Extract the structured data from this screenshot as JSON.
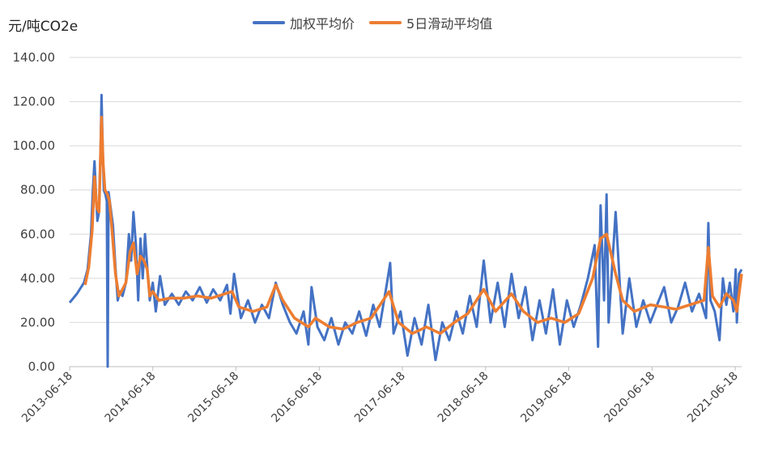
{
  "chart_data": {
    "type": "line",
    "unit_label": "元/吨CO2e",
    "ylim": [
      0,
      140
    ],
    "y_ticks": [
      "0.00",
      "20.00",
      "40.00",
      "60.00",
      "80.00",
      "100.00",
      "120.00",
      "140.00"
    ],
    "x_range": [
      "2013-06-18",
      "2021-07-16"
    ],
    "x_ticks": [
      "2013-06-18",
      "2014-06-18",
      "2015-06-18",
      "2016-06-18",
      "2017-06-18",
      "2018-06-18",
      "2019-06-18",
      "2020-06-18",
      "2021-06-18"
    ],
    "grid": true,
    "legend_position": "top",
    "series": [
      {
        "name": "加权平均价",
        "color": "#4472C4",
        "points": [
          [
            "2013-06-18",
            29
          ],
          [
            "2013-07-20",
            33
          ],
          [
            "2013-08-20",
            38
          ],
          [
            "2013-09-05",
            44
          ],
          [
            "2013-09-20",
            60
          ],
          [
            "2013-09-28",
            80
          ],
          [
            "2013-10-05",
            93
          ],
          [
            "2013-10-12",
            78
          ],
          [
            "2013-10-18",
            66
          ],
          [
            "2013-10-25",
            70
          ],
          [
            "2013-11-01",
            100
          ],
          [
            "2013-11-05",
            123
          ],
          [
            "2013-11-10",
            100
          ],
          [
            "2013-11-15",
            80
          ],
          [
            "2013-11-22",
            78
          ],
          [
            "2013-11-28",
            75
          ],
          [
            "2013-12-02",
            0
          ],
          [
            "2013-12-06",
            79
          ],
          [
            "2013-12-15",
            72
          ],
          [
            "2013-12-25",
            64
          ],
          [
            "2014-01-05",
            45
          ],
          [
            "2014-01-15",
            30
          ],
          [
            "2014-01-25",
            34
          ],
          [
            "2014-02-05",
            32
          ],
          [
            "2014-02-20",
            38
          ],
          [
            "2014-03-05",
            60
          ],
          [
            "2014-03-15",
            48
          ],
          [
            "2014-03-25",
            70
          ],
          [
            "2014-04-05",
            55
          ],
          [
            "2014-04-15",
            30
          ],
          [
            "2014-04-25",
            58
          ],
          [
            "2014-05-05",
            40
          ],
          [
            "2014-05-15",
            60
          ],
          [
            "2014-05-25",
            45
          ],
          [
            "2014-06-05",
            30
          ],
          [
            "2014-06-18",
            38
          ],
          [
            "2014-07-01",
            25
          ],
          [
            "2014-07-20",
            41
          ],
          [
            "2014-08-10",
            28
          ],
          [
            "2014-09-10",
            33
          ],
          [
            "2014-10-10",
            28
          ],
          [
            "2014-11-10",
            34
          ],
          [
            "2014-12-10",
            30
          ],
          [
            "2015-01-10",
            36
          ],
          [
            "2015-02-10",
            29
          ],
          [
            "2015-03-10",
            35
          ],
          [
            "2015-04-10",
            30
          ],
          [
            "2015-05-10",
            37
          ],
          [
            "2015-05-25",
            24
          ],
          [
            "2015-06-10",
            42
          ],
          [
            "2015-07-10",
            22
          ],
          [
            "2015-08-10",
            30
          ],
          [
            "2015-09-10",
            20
          ],
          [
            "2015-10-10",
            28
          ],
          [
            "2015-11-10",
            22
          ],
          [
            "2015-12-10",
            38
          ],
          [
            "2016-01-10",
            28
          ],
          [
            "2016-02-10",
            20
          ],
          [
            "2016-03-10",
            15
          ],
          [
            "2016-04-10",
            25
          ],
          [
            "2016-05-01",
            10
          ],
          [
            "2016-05-15",
            36
          ],
          [
            "2016-06-10",
            18
          ],
          [
            "2016-07-10",
            12
          ],
          [
            "2016-08-10",
            22
          ],
          [
            "2016-09-10",
            10
          ],
          [
            "2016-10-10",
            20
          ],
          [
            "2016-11-10",
            15
          ],
          [
            "2016-12-10",
            25
          ],
          [
            "2017-01-10",
            14
          ],
          [
            "2017-02-10",
            28
          ],
          [
            "2017-03-10",
            18
          ],
          [
            "2017-04-10",
            37
          ],
          [
            "2017-04-25",
            47
          ],
          [
            "2017-05-10",
            15
          ],
          [
            "2017-06-10",
            25
          ],
          [
            "2017-07-10",
            5
          ],
          [
            "2017-08-10",
            22
          ],
          [
            "2017-09-10",
            10
          ],
          [
            "2017-10-10",
            28
          ],
          [
            "2017-11-10",
            3
          ],
          [
            "2017-12-10",
            20
          ],
          [
            "2018-01-10",
            12
          ],
          [
            "2018-02-10",
            25
          ],
          [
            "2018-03-10",
            15
          ],
          [
            "2018-04-10",
            32
          ],
          [
            "2018-05-10",
            18
          ],
          [
            "2018-06-10",
            48
          ],
          [
            "2018-07-10",
            20
          ],
          [
            "2018-08-10",
            38
          ],
          [
            "2018-09-10",
            18
          ],
          [
            "2018-10-10",
            42
          ],
          [
            "2018-11-10",
            22
          ],
          [
            "2018-12-10",
            36
          ],
          [
            "2019-01-10",
            12
          ],
          [
            "2019-02-10",
            30
          ],
          [
            "2019-03-10",
            15
          ],
          [
            "2019-04-10",
            35
          ],
          [
            "2019-05-10",
            10
          ],
          [
            "2019-06-10",
            30
          ],
          [
            "2019-07-10",
            18
          ],
          [
            "2019-08-10",
            28
          ],
          [
            "2019-09-10",
            40
          ],
          [
            "2019-10-10",
            55
          ],
          [
            "2019-10-25",
            9
          ],
          [
            "2019-11-05",
            73
          ],
          [
            "2019-11-20",
            30
          ],
          [
            "2019-12-01",
            78
          ],
          [
            "2019-12-10",
            20
          ],
          [
            "2020-01-10",
            70
          ],
          [
            "2020-02-10",
            15
          ],
          [
            "2020-03-10",
            40
          ],
          [
            "2020-04-10",
            18
          ],
          [
            "2020-05-10",
            30
          ],
          [
            "2020-06-10",
            20
          ],
          [
            "2020-07-10",
            28
          ],
          [
            "2020-08-10",
            36
          ],
          [
            "2020-09-10",
            20
          ],
          [
            "2020-10-10",
            27
          ],
          [
            "2020-11-10",
            38
          ],
          [
            "2020-12-10",
            25
          ],
          [
            "2021-01-10",
            33
          ],
          [
            "2021-02-10",
            22
          ],
          [
            "2021-02-20",
            65
          ],
          [
            "2021-03-01",
            30
          ],
          [
            "2021-03-20",
            25
          ],
          [
            "2021-04-10",
            12
          ],
          [
            "2021-04-25",
            40
          ],
          [
            "2021-05-10",
            28
          ],
          [
            "2021-05-25",
            38
          ],
          [
            "2021-06-10",
            25
          ],
          [
            "2021-06-20",
            44
          ],
          [
            "2021-06-25",
            20
          ],
          [
            "2021-07-05",
            42
          ],
          [
            "2021-07-16",
            44
          ]
        ]
      },
      {
        "name": "5日滑动平均值",
        "color": "#ED7D31",
        "points": [
          [
            "2013-08-25",
            37
          ],
          [
            "2013-09-10",
            45
          ],
          [
            "2013-09-25",
            62
          ],
          [
            "2013-10-05",
            86
          ],
          [
            "2013-10-15",
            72
          ],
          [
            "2013-10-25",
            70
          ],
          [
            "2013-11-05",
            113
          ],
          [
            "2013-11-12",
            92
          ],
          [
            "2013-11-20",
            80
          ],
          [
            "2013-12-01",
            78
          ],
          [
            "2013-12-10",
            75
          ],
          [
            "2013-12-20",
            63
          ],
          [
            "2014-01-05",
            42
          ],
          [
            "2014-01-20",
            32
          ],
          [
            "2014-02-05",
            35
          ],
          [
            "2014-02-20",
            38
          ],
          [
            "2014-03-10",
            52
          ],
          [
            "2014-03-25",
            56
          ],
          [
            "2014-04-10",
            42
          ],
          [
            "2014-04-25",
            50
          ],
          [
            "2014-05-10",
            48
          ],
          [
            "2014-05-25",
            44
          ],
          [
            "2014-06-05",
            32
          ],
          [
            "2014-06-18",
            34
          ],
          [
            "2014-07-15",
            30
          ],
          [
            "2014-09-01",
            31
          ],
          [
            "2014-11-01",
            31
          ],
          [
            "2015-01-01",
            32
          ],
          [
            "2015-03-01",
            31
          ],
          [
            "2015-05-01",
            33
          ],
          [
            "2015-06-01",
            34
          ],
          [
            "2015-07-01",
            27
          ],
          [
            "2015-09-01",
            25
          ],
          [
            "2015-11-01",
            27
          ],
          [
            "2015-12-10",
            37
          ],
          [
            "2016-01-10",
            30
          ],
          [
            "2016-03-01",
            22
          ],
          [
            "2016-05-01",
            18
          ],
          [
            "2016-06-01",
            22
          ],
          [
            "2016-08-01",
            18
          ],
          [
            "2016-10-01",
            17
          ],
          [
            "2016-12-01",
            20
          ],
          [
            "2017-02-01",
            22
          ],
          [
            "2017-04-20",
            34
          ],
          [
            "2017-06-01",
            20
          ],
          [
            "2017-08-01",
            15
          ],
          [
            "2017-10-01",
            18
          ],
          [
            "2017-12-01",
            15
          ],
          [
            "2018-02-01",
            20
          ],
          [
            "2018-04-01",
            24
          ],
          [
            "2018-06-10",
            35
          ],
          [
            "2018-08-01",
            25
          ],
          [
            "2018-10-10",
            33
          ],
          [
            "2018-12-01",
            25
          ],
          [
            "2019-02-01",
            20
          ],
          [
            "2019-04-01",
            22
          ],
          [
            "2019-06-01",
            20
          ],
          [
            "2019-08-01",
            24
          ],
          [
            "2019-10-01",
            40
          ],
          [
            "2019-11-05",
            58
          ],
          [
            "2019-12-01",
            60
          ],
          [
            "2020-01-10",
            42
          ],
          [
            "2020-02-10",
            30
          ],
          [
            "2020-04-01",
            25
          ],
          [
            "2020-06-10",
            28
          ],
          [
            "2020-08-10",
            27
          ],
          [
            "2020-10-01",
            26
          ],
          [
            "2020-12-01",
            28
          ],
          [
            "2021-02-01",
            30
          ],
          [
            "2021-02-20",
            54
          ],
          [
            "2021-03-10",
            32
          ],
          [
            "2021-04-10",
            27
          ],
          [
            "2021-05-10",
            33
          ],
          [
            "2021-06-10",
            30
          ],
          [
            "2021-06-25",
            25
          ],
          [
            "2021-07-16",
            42
          ]
        ]
      }
    ]
  }
}
